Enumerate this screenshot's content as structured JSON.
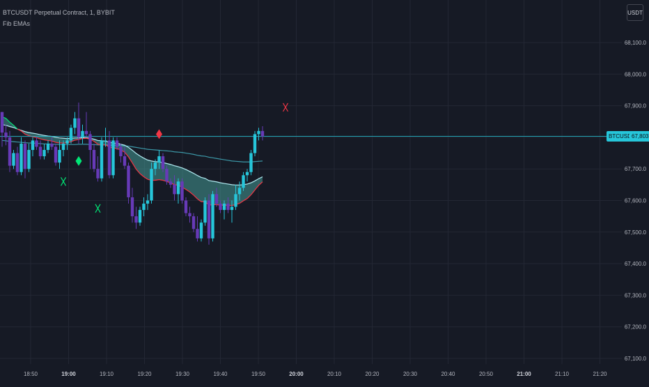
{
  "header": {
    "symbol_title": "BTCUSDT Perpetual Contract, 1, BYBIT",
    "indicator_name": "Fib EMAs"
  },
  "currency_button": "USDT",
  "price_tag": {
    "symbol": "BTCUSDT.P",
    "price": "67,803.0"
  },
  "colors": {
    "background": "#161a25",
    "grid": "#232734",
    "axis_text": "#b2b5be",
    "bull_candle": "#26c6da",
    "bear_candle": "#673ab7",
    "ema_fast_up": "#00e676",
    "ema_fast_down": "#f23645",
    "ema_slow": "#b2ebf2",
    "ema_long": "#4dd0e1",
    "fill": "#4db6ac",
    "price_line": "#26c6da",
    "sell_marker": "#f23645",
    "buy_marker": "#00e676"
  },
  "chart_data": {
    "type": "candlestick",
    "ylim": [
      67080,
      68150
    ],
    "y_ticks": [
      "68,100.0",
      "68,000.0",
      "67,900.0",
      "67,800.0",
      "67,700.0",
      "67,600.0",
      "67,500.0",
      "67,400.0",
      "67,300.0",
      "67,200.0",
      "67,100.0"
    ],
    "x_ticks": [
      {
        "label": "18:50",
        "bold": false
      },
      {
        "label": "19:00",
        "bold": true
      },
      {
        "label": "19:10",
        "bold": false
      },
      {
        "label": "19:20",
        "bold": false
      },
      {
        "label": "19:30",
        "bold": false
      },
      {
        "label": "19:40",
        "bold": false
      },
      {
        "label": "19:50",
        "bold": false
      },
      {
        "label": "20:00",
        "bold": true
      },
      {
        "label": "20:10",
        "bold": false
      },
      {
        "label": "20:20",
        "bold": false
      },
      {
        "label": "20:30",
        "bold": false
      },
      {
        "label": "20:40",
        "bold": false
      },
      {
        "label": "20:50",
        "bold": false
      },
      {
        "label": "21:00",
        "bold": true
      },
      {
        "label": "21:10",
        "bold": false
      },
      {
        "label": "21:20",
        "bold": false
      }
    ],
    "last_price": 67803,
    "candles": [
      [
        67880,
        67880,
        67770,
        67815
      ],
      [
        67815,
        67840,
        67775,
        67800
      ],
      [
        67800,
        67820,
        67690,
        67710
      ],
      [
        67710,
        67760,
        67700,
        67750
      ],
      [
        67750,
        67770,
        67680,
        67690
      ],
      [
        67690,
        67800,
        67680,
        67780
      ],
      [
        67780,
        67790,
        67670,
        67700
      ],
      [
        67700,
        67780,
        67690,
        67760
      ],
      [
        67760,
        67800,
        67740,
        67790
      ],
      [
        67790,
        67800,
        67760,
        67770
      ],
      [
        67770,
        67790,
        67730,
        67740
      ],
      [
        67740,
        67780,
        67730,
        67760
      ],
      [
        67760,
        67790,
        67750,
        67780
      ],
      [
        67780,
        67800,
        67760,
        67770
      ],
      [
        67770,
        67780,
        67710,
        67720
      ],
      [
        67720,
        67790,
        67700,
        67760
      ],
      [
        67760,
        67790,
        67740,
        67780
      ],
      [
        67780,
        67800,
        67760,
        67790
      ],
      [
        67790,
        67840,
        67780,
        67830
      ],
      [
        67830,
        67880,
        67810,
        67860
      ],
      [
        67860,
        67910,
        67780,
        67800
      ],
      [
        67800,
        67840,
        67780,
        67820
      ],
      [
        67820,
        67880,
        67800,
        67810
      ],
      [
        67810,
        67820,
        67700,
        67760
      ],
      [
        67760,
        67780,
        67690,
        67700
      ],
      [
        67700,
        67740,
        67660,
        67670
      ],
      [
        67670,
        67800,
        67660,
        67790
      ],
      [
        67790,
        67830,
        67770,
        67790
      ],
      [
        67790,
        67820,
        67670,
        67680
      ],
      [
        67680,
        67800,
        67670,
        67790
      ],
      [
        67790,
        67800,
        67760,
        67770
      ],
      [
        67770,
        67780,
        67720,
        67740
      ],
      [
        67740,
        67770,
        67700,
        67710
      ],
      [
        67710,
        67720,
        67590,
        67610
      ],
      [
        67610,
        67640,
        67530,
        67550
      ],
      [
        67550,
        67580,
        67510,
        67530
      ],
      [
        67530,
        67580,
        67520,
        67570
      ],
      [
        67570,
        67610,
        67550,
        67590
      ],
      [
        67590,
        67620,
        67570,
        67600
      ],
      [
        67600,
        67720,
        67590,
        67700
      ],
      [
        67700,
        67730,
        67680,
        67720
      ],
      [
        67720,
        67760,
        67700,
        67740
      ],
      [
        67740,
        67750,
        67690,
        67700
      ],
      [
        67700,
        67710,
        67650,
        67660
      ],
      [
        67660,
        67670,
        67640,
        67650
      ],
      [
        67650,
        67680,
        67600,
        67620
      ],
      [
        67620,
        67670,
        67590,
        67660
      ],
      [
        67660,
        67670,
        67590,
        67600
      ],
      [
        67600,
        67610,
        67550,
        67560
      ],
      [
        67560,
        67580,
        67530,
        67550
      ],
      [
        67550,
        67560,
        67500,
        67510
      ],
      [
        67510,
        67550,
        67470,
        67480
      ],
      [
        67480,
        67540,
        67470,
        67530
      ],
      [
        67530,
        67610,
        67520,
        67600
      ],
      [
        67600,
        67620,
        67460,
        67480
      ],
      [
        67480,
        67630,
        67470,
        67620
      ],
      [
        67620,
        67640,
        67580,
        67590
      ],
      [
        67590,
        67600,
        67560,
        67570
      ],
      [
        67570,
        67600,
        67540,
        67590
      ],
      [
        67590,
        67610,
        67560,
        67570
      ],
      [
        67570,
        67600,
        67530,
        67580
      ],
      [
        67580,
        67650,
        67570,
        67620
      ],
      [
        67620,
        67660,
        67600,
        67640
      ],
      [
        67640,
        67690,
        67630,
        67680
      ],
      [
        67680,
        67700,
        67660,
        67690
      ],
      [
        67690,
        67760,
        67680,
        67750
      ],
      [
        67750,
        67820,
        67740,
        67810
      ],
      [
        67810,
        67830,
        67790,
        67820
      ],
      [
        67820,
        67835,
        67790,
        67803
      ]
    ],
    "ema_fast": [
      67865,
      67860,
      67848,
      67838,
      67826,
      67820,
      67810,
      67805,
      67802,
      67799,
      67795,
      67792,
      67790,
      67788,
      67784,
      67782,
      67782,
      67783,
      67786,
      67791,
      67793,
      67796,
      67797,
      67794,
      67787,
      67778,
      67776,
      67776,
      67769,
      67766,
      67764,
      67760,
      67753,
      67738,
      67719,
      67699,
      67685,
      67675,
      67667,
      67664,
      67664,
      67666,
      67664,
      67660,
      67656,
      67650,
      67648,
      67642,
      67635,
      67627,
      67617,
      67605,
      67596,
      67596,
      67585,
      67587,
      67587,
      67585,
      67585,
      67584,
      67584,
      67587,
      67591,
      67599,
      67606,
      67618,
      67633,
      67648,
      67659
    ],
    "ema_slow": [
      67840,
      67838,
      67834,
      67831,
      67826,
      67822,
      67818,
      67815,
      67813,
      67811,
      67808,
      67806,
      67804,
      67803,
      67800,
      67798,
      67797,
      67796,
      67797,
      67798,
      67798,
      67799,
      67799,
      67797,
      67794,
      67790,
      67789,
      67788,
      67784,
      67782,
      67781,
      67778,
      67775,
      67768,
      67759,
      67749,
      67741,
      67734,
      67728,
      67725,
      67723,
      67722,
      67720,
      67717,
      67714,
      67710,
      67707,
      67703,
      67698,
      67692,
      67686,
      67679,
      67673,
      67670,
      67663,
      67661,
      67659,
      67656,
      67654,
      67652,
      67650,
      67649,
      67649,
      67650,
      67652,
      67656,
      67662,
      67669,
      67675
    ],
    "ema_long": [
      67790,
      67789,
      67787,
      67786,
      67785,
      67784,
      67783,
      67782,
      67782,
      67781,
      67780,
      67779,
      67779,
      67778,
      67778,
      67777,
      67777,
      67777,
      67777,
      67777,
      67778,
      67778,
      67778,
      67777,
      67777,
      67776,
      67776,
      67776,
      67775,
      67775,
      67775,
      67774,
      67773,
      67772,
      67770,
      67768,
      67766,
      67764,
      67762,
      67761,
      67760,
      67759,
      67758,
      67757,
      67756,
      67754,
      67753,
      67752,
      67750,
      67748,
      67746,
      67743,
      67741,
      67740,
      67737,
      67735,
      67733,
      67731,
      67729,
      67727,
      67725,
      67724,
      67723,
      67722,
      67722,
      67722,
      67723,
      67724,
      67725
    ],
    "markers": [
      {
        "type": "x",
        "color": "buy",
        "bar": 16,
        "y": 67660
      },
      {
        "type": "diamond",
        "color": "buy",
        "bar": 20,
        "y": 67725
      },
      {
        "type": "x",
        "color": "buy",
        "bar": 25,
        "y": 67575
      },
      {
        "type": "diamond",
        "color": "sell",
        "bar": 41,
        "y": 67810
      },
      {
        "type": "x",
        "color": "sell",
        "bar": 74,
        "y": 67895
      }
    ]
  }
}
